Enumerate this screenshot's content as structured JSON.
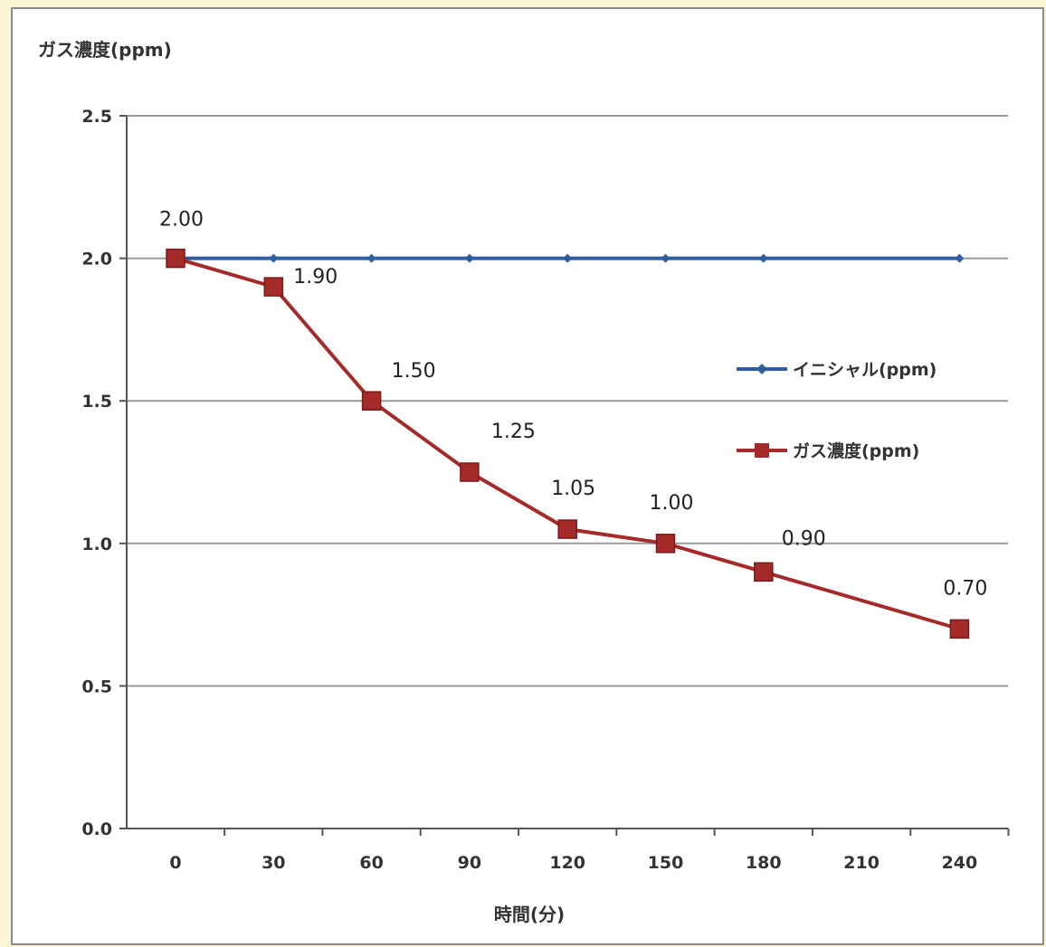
{
  "chart_data": {
    "type": "line",
    "title": "",
    "ylabel": "ガス濃度(ppm)",
    "xlabel": "時間(分)",
    "categories": [
      "0",
      "30",
      "60",
      "90",
      "120",
      "150",
      "180",
      "210",
      "240"
    ],
    "x": [
      0,
      30,
      60,
      90,
      120,
      150,
      180,
      240
    ],
    "ylim": [
      0,
      2.5
    ],
    "yticks": [
      "0.0",
      "0.5",
      "1.0",
      "1.5",
      "2.0",
      "2.5"
    ],
    "grid": true,
    "legend_position": "right",
    "series": [
      {
        "name": "イニシャル(ppm)",
        "color": "#2e5e9e",
        "marker": "diamond",
        "values": [
          2.0,
          2.0,
          2.0,
          2.0,
          2.0,
          2.0,
          2.0,
          2.0
        ]
      },
      {
        "name": "ガス濃度(ppm)",
        "color": "#a52a2a",
        "marker": "square",
        "values": [
          2.0,
          1.9,
          1.5,
          1.25,
          1.05,
          1.0,
          0.9,
          0.7
        ],
        "data_labels": [
          "2.00",
          "1.90",
          "1.50",
          "1.25",
          "1.05",
          "1.00",
          "0.90",
          "0.70"
        ]
      }
    ]
  }
}
